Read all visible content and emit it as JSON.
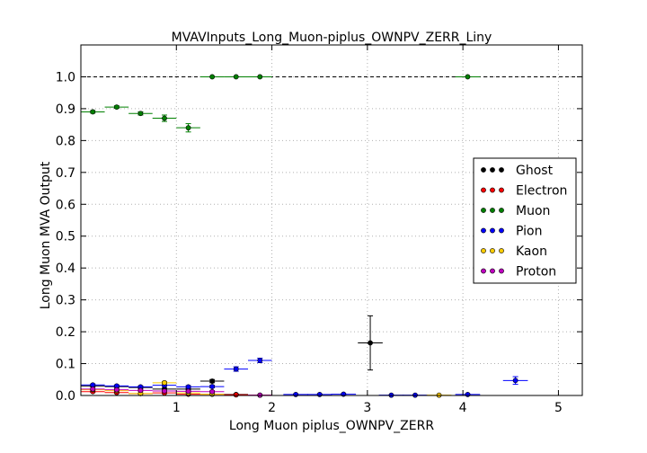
{
  "chart_data": {
    "type": "scatter",
    "title": "MVAVInputs_Long_Muon-piplus_OWNPV_ZERR_Liny",
    "xlabel": "Long Muon piplus_OWNPV_ZERR",
    "ylabel": "Long Muon MVA Output",
    "xlim": [
      0.0,
      5.25
    ],
    "ylim": [
      0.0,
      1.1
    ],
    "x_ticks": [
      1,
      2,
      3,
      4,
      5
    ],
    "x_tick_labels": [
      "1",
      "2",
      "3",
      "4",
      "5"
    ],
    "y_ticks": [
      0.0,
      0.1,
      0.2,
      0.3,
      0.4,
      0.5,
      0.6,
      0.7,
      0.8,
      0.9,
      1.0
    ],
    "y_tick_labels": [
      "0.0",
      "0.1",
      "0.2",
      "0.3",
      "0.4",
      "0.5",
      "0.6",
      "0.7",
      "0.8",
      "0.9",
      "1.0"
    ],
    "grid": true,
    "reference_line_y": 1.0,
    "legend_position": "right",
    "series": [
      {
        "name": "Ghost",
        "color": "#000000",
        "points": [
          {
            "x": 0.125,
            "y": 0.03,
            "xerr": 0.125,
            "yerr": 0.003
          },
          {
            "x": 0.375,
            "y": 0.028,
            "xerr": 0.125,
            "yerr": 0.003
          },
          {
            "x": 0.625,
            "y": 0.025,
            "xerr": 0.125,
            "yerr": 0.003
          },
          {
            "x": 0.875,
            "y": 0.02,
            "xerr": 0.125,
            "yerr": 0.003
          },
          {
            "x": 1.125,
            "y": 0.02,
            "xerr": 0.125,
            "yerr": 0.003
          },
          {
            "x": 1.375,
            "y": 0.045,
            "xerr": 0.125,
            "yerr": 0.005
          },
          {
            "x": 1.625,
            "y": 0.003,
            "xerr": 0.125,
            "yerr": 0.002
          },
          {
            "x": 3.03,
            "y": 0.165,
            "xerr": 0.13,
            "yerr": 0.085
          }
        ]
      },
      {
        "name": "Electron",
        "color": "#ff0000",
        "points": [
          {
            "x": 0.125,
            "y": 0.012,
            "xerr": 0.125,
            "yerr": 0.002
          },
          {
            "x": 0.375,
            "y": 0.009,
            "xerr": 0.125,
            "yerr": 0.002
          },
          {
            "x": 0.625,
            "y": 0.006,
            "xerr": 0.125,
            "yerr": 0.002
          },
          {
            "x": 0.875,
            "y": 0.008,
            "xerr": 0.125,
            "yerr": 0.002
          },
          {
            "x": 1.125,
            "y": 0.004,
            "xerr": 0.125,
            "yerr": 0.002
          },
          {
            "x": 1.375,
            "y": 0.004,
            "xerr": 0.125,
            "yerr": 0.002
          },
          {
            "x": 1.625,
            "y": 0.002,
            "xerr": 0.125,
            "yerr": 0.001
          },
          {
            "x": 1.875,
            "y": 0.001,
            "xerr": 0.125,
            "yerr": 0.001
          }
        ]
      },
      {
        "name": "Muon",
        "color": "#008000",
        "points": [
          {
            "x": 0.125,
            "y": 0.89,
            "xerr": 0.125,
            "yerr": 0.004
          },
          {
            "x": 0.375,
            "y": 0.905,
            "xerr": 0.125,
            "yerr": 0.004
          },
          {
            "x": 0.625,
            "y": 0.885,
            "xerr": 0.125,
            "yerr": 0.005
          },
          {
            "x": 0.875,
            "y": 0.87,
            "xerr": 0.125,
            "yerr": 0.01
          },
          {
            "x": 1.125,
            "y": 0.84,
            "xerr": 0.125,
            "yerr": 0.013
          },
          {
            "x": 1.375,
            "y": 1.0,
            "xerr": 0.125,
            "yerr": 0.0
          },
          {
            "x": 1.625,
            "y": 1.0,
            "xerr": 0.125,
            "yerr": 0.0
          },
          {
            "x": 1.875,
            "y": 1.0,
            "xerr": 0.125,
            "yerr": 0.0
          },
          {
            "x": 4.05,
            "y": 1.0,
            "xerr": 0.13,
            "yerr": 0.0
          }
        ]
      },
      {
        "name": "Pion",
        "color": "#0000ff",
        "points": [
          {
            "x": 0.125,
            "y": 0.033,
            "xerr": 0.125,
            "yerr": 0.003
          },
          {
            "x": 0.375,
            "y": 0.03,
            "xerr": 0.125,
            "yerr": 0.003
          },
          {
            "x": 0.625,
            "y": 0.027,
            "xerr": 0.125,
            "yerr": 0.003
          },
          {
            "x": 0.875,
            "y": 0.032,
            "xerr": 0.125,
            "yerr": 0.004
          },
          {
            "x": 1.125,
            "y": 0.027,
            "xerr": 0.125,
            "yerr": 0.004
          },
          {
            "x": 1.375,
            "y": 0.028,
            "xerr": 0.125,
            "yerr": 0.004
          },
          {
            "x": 1.625,
            "y": 0.083,
            "xerr": 0.125,
            "yerr": 0.007
          },
          {
            "x": 1.875,
            "y": 0.11,
            "xerr": 0.125,
            "yerr": 0.007
          },
          {
            "x": 2.25,
            "y": 0.003,
            "xerr": 0.13,
            "yerr": 0.002
          },
          {
            "x": 2.5,
            "y": 0.003,
            "xerr": 0.13,
            "yerr": 0.002
          },
          {
            "x": 2.75,
            "y": 0.004,
            "xerr": 0.13,
            "yerr": 0.002
          },
          {
            "x": 3.25,
            "y": 0.001,
            "xerr": 0.13,
            "yerr": 0.001
          },
          {
            "x": 3.5,
            "y": 0.001,
            "xerr": 0.13,
            "yerr": 0.001
          },
          {
            "x": 4.05,
            "y": 0.003,
            "xerr": 0.13,
            "yerr": 0.002
          },
          {
            "x": 4.55,
            "y": 0.047,
            "xerr": 0.13,
            "yerr": 0.012
          }
        ]
      },
      {
        "name": "Kaon",
        "color": "#ffcc00",
        "points": [
          {
            "x": 0.125,
            "y": 0.018,
            "xerr": 0.125,
            "yerr": 0.002
          },
          {
            "x": 0.375,
            "y": 0.015,
            "xerr": 0.125,
            "yerr": 0.002
          },
          {
            "x": 0.625,
            "y": 0.006,
            "xerr": 0.125,
            "yerr": 0.002
          },
          {
            "x": 0.875,
            "y": 0.04,
            "xerr": 0.125,
            "yerr": 0.004
          },
          {
            "x": 1.125,
            "y": 0.008,
            "xerr": 0.125,
            "yerr": 0.003
          },
          {
            "x": 1.375,
            "y": 0.004,
            "xerr": 0.125,
            "yerr": 0.002
          },
          {
            "x": 3.75,
            "y": 0.001,
            "xerr": 0.13,
            "yerr": 0.001
          }
        ]
      },
      {
        "name": "Proton",
        "color": "#bf00bf",
        "points": [
          {
            "x": 0.125,
            "y": 0.02,
            "xerr": 0.125,
            "yerr": 0.003
          },
          {
            "x": 0.375,
            "y": 0.018,
            "xerr": 0.125,
            "yerr": 0.003
          },
          {
            "x": 0.625,
            "y": 0.016,
            "xerr": 0.125,
            "yerr": 0.003
          },
          {
            "x": 0.875,
            "y": 0.014,
            "xerr": 0.125,
            "yerr": 0.003
          },
          {
            "x": 1.125,
            "y": 0.013,
            "xerr": 0.125,
            "yerr": 0.003
          },
          {
            "x": 1.375,
            "y": 0.012,
            "xerr": 0.125,
            "yerr": 0.003
          },
          {
            "x": 1.875,
            "y": 0.001,
            "xerr": 0.125,
            "yerr": 0.001
          }
        ]
      }
    ]
  }
}
